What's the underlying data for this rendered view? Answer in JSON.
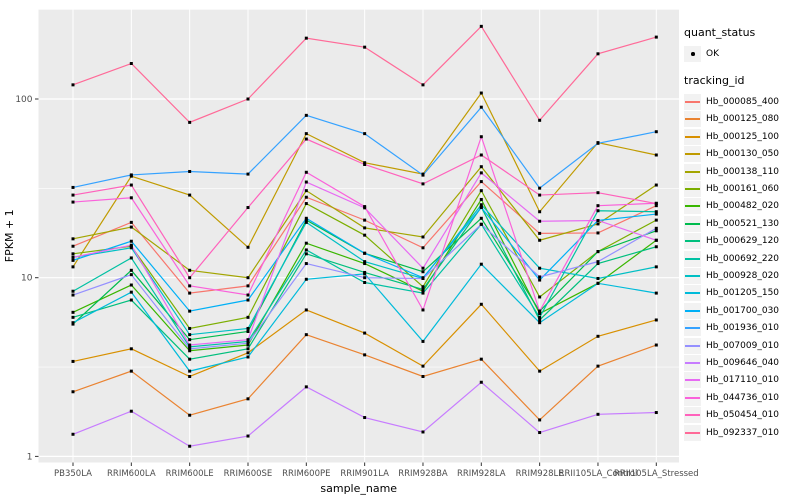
{
  "figure": {
    "xlabel": "sample_name",
    "ylabel": "FPKM + 1"
  },
  "legend": {
    "quant_status_title": "quant_status",
    "quant_status_items": [
      {
        "label": "OK",
        "marker": "black-point"
      }
    ],
    "tracking_title": "tracking_id"
  },
  "chart_data": {
    "type": "line",
    "title": "",
    "xlabel": "sample_name",
    "ylabel": "FPKM + 1",
    "y_scale": "log10",
    "y_ticks": [
      1,
      10,
      100
    ],
    "y_minor_ticks": [
      3.162,
      31.62,
      316.2
    ],
    "ylim": [
      1,
      350
    ],
    "grid": true,
    "legend_position": "right",
    "point_marker": "small-black-square",
    "panel_background": "#EBEBEB",
    "gridline_color": "#FFFFFF",
    "tick_label_color": "#4D4D4D",
    "categories": [
      "PB350LA",
      "RRIM600LA",
      "RRIM600LE",
      "RRIM600SE",
      "RRIM600PE",
      "RRIM901LA",
      "RRIM928BA",
      "RRIM928LA",
      "RRIM928LE",
      "RRII105LA_Control",
      "RRII105LA_Stressed"
    ],
    "series": [
      {
        "name": "Hb_000085_400",
        "color": "#F8766D",
        "values": [
          15,
          20.4,
          8.2,
          9,
          28.2,
          21,
          14.7,
          34.5,
          17.7,
          17.8,
          25.3
        ]
      },
      {
        "name": "Hb_000125_080",
        "color": "#EA8331",
        "values": [
          2.3,
          3.0,
          1.7,
          2.1,
          4.8,
          3.7,
          2.8,
          3.5,
          1.6,
          3.2,
          4.2
        ]
      },
      {
        "name": "Hb_000125_100",
        "color": "#D89000",
        "values": [
          3.4,
          4.0,
          2.8,
          3.8,
          6.6,
          4.9,
          3.2,
          7.1,
          3.0,
          4.7,
          5.8
        ]
      },
      {
        "name": "Hb_000130_050",
        "color": "#C09B00",
        "values": [
          11.5,
          37,
          29,
          14.8,
          64,
          44,
          38,
          108,
          23.4,
          57,
          48.6
        ]
      },
      {
        "name": "Hb_000138_110",
        "color": "#A3A500",
        "values": [
          16.5,
          19.2,
          11,
          10,
          30.7,
          19,
          16.9,
          41.8,
          16.2,
          20,
          33
        ]
      },
      {
        "name": "Hb_000161_060",
        "color": "#7CAE00",
        "values": [
          13.6,
          15,
          5.2,
          6,
          26,
          17.3,
          8.9,
          30.7,
          7.8,
          14,
          21
        ]
      },
      {
        "name": "Hb_000482_020",
        "color": "#39B600",
        "values": [
          6.4,
          9.1,
          3.9,
          4.2,
          15.6,
          12,
          8.4,
          27.4,
          6.3,
          9.3,
          16.2
        ]
      },
      {
        "name": "Hb_000521_130",
        "color": "#00BB4E",
        "values": [
          5.5,
          11,
          4.5,
          5,
          21,
          13.7,
          10.8,
          21.5,
          6.5,
          14,
          18.3
        ]
      },
      {
        "name": "Hb_000629_120",
        "color": "#00BF7D",
        "values": [
          6.0,
          7.5,
          3.5,
          4.0,
          13.6,
          10.7,
          8.6,
          24.8,
          5.8,
          12,
          14.9
        ]
      },
      {
        "name": "Hb_000692_220",
        "color": "#00C1A3",
        "values": [
          8.4,
          12.9,
          4.1,
          4.4,
          14.3,
          9.4,
          8.2,
          19.9,
          6.0,
          23.7,
          23.4
        ]
      },
      {
        "name": "Hb_000928_020",
        "color": "#00BFC4",
        "values": [
          13.0,
          14.7,
          4.8,
          5.2,
          20.4,
          12.3,
          9.9,
          25.6,
          11.3,
          9.9,
          11.5
        ]
      },
      {
        "name": "Hb_001205_150",
        "color": "#00BBDA",
        "values": [
          5.6,
          8.3,
          3.0,
          3.6,
          9.8,
          10.5,
          4.4,
          11.9,
          5.6,
          9.3,
          8.2
        ]
      },
      {
        "name": "Hb_001700_030",
        "color": "#00B0F6",
        "values": [
          12.5,
          16,
          6.5,
          7.5,
          21.5,
          13.7,
          10,
          24.7,
          9.7,
          20.9,
          22.7
        ]
      },
      {
        "name": "Hb_001936_010",
        "color": "#35A2FF",
        "values": [
          32,
          37.6,
          39.3,
          38,
          81,
          64,
          37.5,
          90,
          31.7,
          56.5,
          65.6
        ]
      },
      {
        "name": "Hb_007009_010",
        "color": "#9590FF",
        "values": [
          8.0,
          10.4,
          4.0,
          4.3,
          12.0,
          10.0,
          9.9,
          19.9,
          10.1,
          12.3,
          18.9
        ]
      },
      {
        "name": "Hb_009646_040",
        "color": "#C77CFF",
        "values": [
          1.33,
          1.79,
          1.14,
          1.3,
          2.45,
          1.65,
          1.37,
          2.6,
          1.36,
          1.72,
          1.76
        ]
      },
      {
        "name": "Hb_017110_010",
        "color": "#E76BF3",
        "values": [
          13.0,
          15.2,
          4.2,
          4.5,
          34.3,
          24.6,
          11.3,
          38.6,
          20.7,
          20.9,
          16.2
        ]
      },
      {
        "name": "Hb_044736_010",
        "color": "#FA62DB",
        "values": [
          26.5,
          28,
          9.0,
          8.0,
          38.9,
          25,
          6.6,
          61.5,
          6.5,
          25.3,
          26.1
        ]
      },
      {
        "name": "Hb_050454_010",
        "color": "#FF62BC",
        "values": [
          29,
          33,
          10,
          24.7,
          59.7,
          43,
          33.5,
          48.6,
          29,
          29.9,
          26
        ]
      },
      {
        "name": "Hb_092337_010",
        "color": "#FF6A98",
        "values": [
          120,
          158,
          74,
          100,
          219,
          195,
          120,
          255,
          76,
          179,
          222
        ]
      }
    ]
  }
}
